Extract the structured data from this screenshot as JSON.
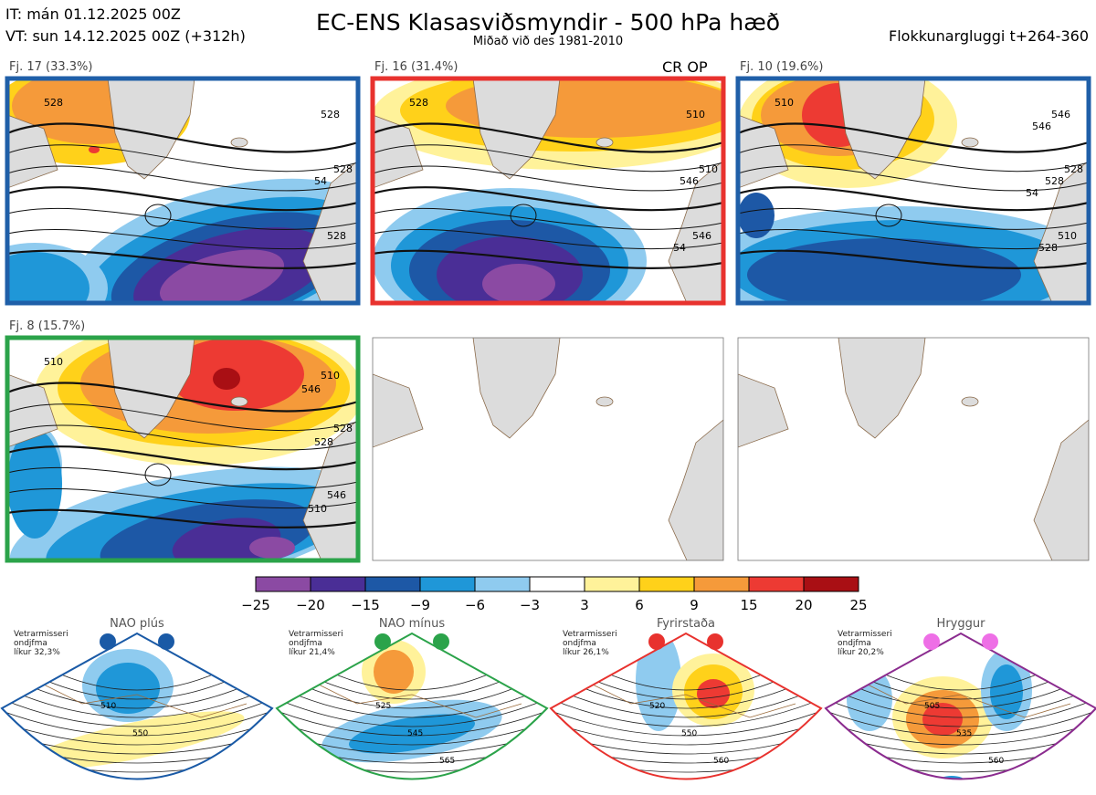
{
  "header": {
    "it_line": "IT: mán 01.12.2025 00Z",
    "vt_line": "VT: sun 14.12.2025 00Z  (+312h)",
    "title": "EC-ENS Klasasviðsmyndir - 500 hPa hæð",
    "subtitle": "Miðað við des 1981-2010",
    "window": "Flokkunargluggi t+264-360"
  },
  "operational_label": "CR OP",
  "panels": [
    {
      "label": "Fj. 17 (33.3%)",
      "border": "#1f5fa8",
      "contours": [
        "528",
        "528",
        "528",
        "528",
        "54"
      ]
    },
    {
      "label": "Fj. 16 (31.4%)",
      "border": "#e8322e",
      "contours": [
        "528",
        "510",
        "546",
        "510",
        "546",
        "54"
      ]
    },
    {
      "label": "Fj. 10 (19.6%)",
      "border": "#1f5fa8",
      "contours": [
        "510",
        "528",
        "510",
        "546",
        "528",
        "528",
        "546",
        "54"
      ]
    },
    {
      "label": "Fj. 8 (15.7%)",
      "border": "#2ba34a",
      "contours": [
        "510",
        "528",
        "546",
        "510",
        "528",
        "510",
        "546"
      ]
    },
    {
      "label": "",
      "border": "",
      "contours": []
    },
    {
      "label": "",
      "border": "",
      "contours": []
    }
  ],
  "colorbar": {
    "ticks": [
      "−25",
      "−20",
      "−15",
      "−9",
      "−6",
      "−3",
      "3",
      "6",
      "9",
      "15",
      "20",
      "25"
    ],
    "colors": [
      "#8b4aa3",
      "#4a2e96",
      "#1d58a6",
      "#1f97d8",
      "#8fcbef",
      "#ffffff",
      "#fff29a",
      "#ffd11a",
      "#f59a3a",
      "#ed3a33",
      "#a90f14"
    ]
  },
  "regimes": [
    {
      "name": "NAO plús",
      "title_text": "Vetrarmisseri\nondjfma\nlíkur 32,3%",
      "color": "#1a5aa6",
      "dot": "#1a5aa6",
      "contours": [
        "510",
        "550"
      ]
    },
    {
      "name": "NAO mínus",
      "title_text": "Vetrarmisseri\nondjfma\nlíkur 21,4%",
      "color": "#2ba34a",
      "dot": "#2ba34a",
      "contours": [
        "525",
        "545",
        "565"
      ]
    },
    {
      "name": "Fyrirstaða",
      "title_text": "Vetrarmisseri\nondjfma\nlíkur 26,1%",
      "color": "#e8322e",
      "dot": "#e8322e",
      "contours": [
        "520",
        "550",
        "560"
      ]
    },
    {
      "name": "Hryggur",
      "title_text": "Vetrarmisseri\nondjfma\nlíkur 20,2%",
      "color": "#8b2c8f",
      "dot": "#ee6fe6",
      "contours": [
        "505",
        "535",
        "560"
      ]
    }
  ],
  "chart_data": {
    "type": "heatmap",
    "title": "EC-ENS Klasasviðsmyndir - 500 hPa hæð",
    "subtitle": "Miðað við des 1981-2010",
    "colorbar_levels": [
      -25,
      -20,
      -15,
      -9,
      -6,
      -3,
      3,
      6,
      9,
      15,
      20,
      25
    ],
    "clusters": [
      {
        "label": "Fj. 17 (33.3%)",
        "probability_pct": 33.3
      },
      {
        "label": "Fj. 16 (31.4%)",
        "probability_pct": 31.4
      },
      {
        "label": "Fj. 10 (19.6%)",
        "probability_pct": 19.6
      },
      {
        "label": "Fj. 8 (15.7%)",
        "probability_pct": 15.7
      }
    ],
    "regimes": [
      {
        "name": "NAO plús",
        "probability_pct": 32.3
      },
      {
        "name": "NAO mínus",
        "probability_pct": 21.4
      },
      {
        "name": "Fyrirstaða",
        "probability_pct": 26.1
      },
      {
        "name": "Hryggur",
        "probability_pct": 20.2
      }
    ]
  }
}
